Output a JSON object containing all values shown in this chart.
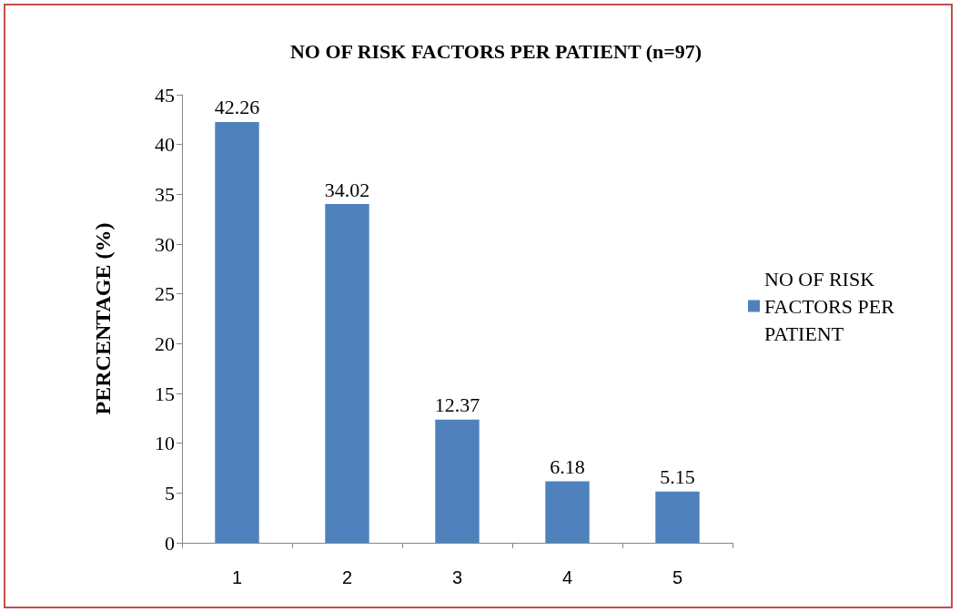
{
  "chart_data": {
    "type": "bar",
    "title": "NO OF RISK FACTORS PER PATIENT (n=97)",
    "ylabel": "PERCENTAGE (%)",
    "categories": [
      "1",
      "2",
      "3",
      "4",
      "5"
    ],
    "series": [
      {
        "name": "NO OF RISK FACTORS PER PATIENT",
        "color": "#4f81bd",
        "values": [
          42.26,
          34.02,
          12.37,
          6.18,
          5.15
        ]
      }
    ],
    "ylim": [
      0,
      45
    ],
    "yticks": [
      0,
      5,
      10,
      15,
      20,
      25,
      30,
      35,
      40,
      45
    ],
    "grid": false,
    "legend": "right",
    "data_labels": true
  }
}
